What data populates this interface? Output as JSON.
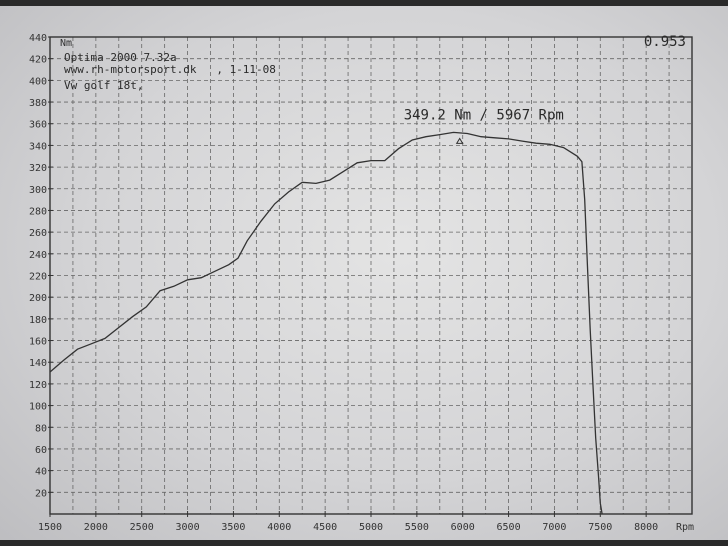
{
  "header": {
    "line1": "Optima 2000 7.32a",
    "line2": "www.rh-motorsport.dk   , 1-11-08",
    "line3": "Vw golf 18t,"
  },
  "corner_value": "0.953",
  "peak_label": "349.2 Nm / 5967 Rpm",
  "chart_data": {
    "type": "line",
    "title": "",
    "xlabel": "Rpm",
    "ylabel": "Nm",
    "xlim": [
      1500,
      8500
    ],
    "ylim": [
      0,
      440
    ],
    "x_ticks": [
      1500,
      2000,
      2500,
      3000,
      3500,
      4000,
      4500,
      5000,
      5500,
      6000,
      6500,
      7000,
      7500,
      8000
    ],
    "y_ticks": [
      20,
      40,
      60,
      80,
      100,
      120,
      140,
      160,
      180,
      200,
      220,
      240,
      260,
      280,
      300,
      320,
      340,
      360,
      380,
      400,
      420,
      440
    ],
    "grid": true,
    "peak": {
      "x": 5967,
      "y": 349.2
    },
    "series": [
      {
        "x": [
          1500,
          1650,
          1800,
          1950,
          2100,
          2250,
          2400,
          2550,
          2700,
          2850,
          3000,
          3150,
          3300,
          3450,
          3550,
          3650,
          3800,
          3950,
          4100,
          4250,
          4400,
          4550,
          4700,
          4850,
          5000,
          5150,
          5300,
          5450,
          5600,
          5750,
          5900,
          6050,
          6200,
          6350,
          6500,
          6650,
          6800,
          6950,
          7100,
          7250,
          7300,
          7330,
          7360,
          7390,
          7420,
          7450,
          7480,
          7500,
          7520
        ],
        "y": [
          131,
          142,
          152,
          157,
          162,
          172,
          182,
          191,
          206,
          210,
          216,
          218,
          224,
          230,
          236,
          252,
          270,
          286,
          297,
          306,
          305,
          308,
          316,
          324,
          326,
          326,
          337,
          345,
          348,
          350,
          352,
          351,
          348,
          347,
          346,
          344,
          342,
          341,
          338,
          330,
          325,
          290,
          230,
          170,
          120,
          70,
          35,
          10,
          0
        ]
      }
    ]
  }
}
